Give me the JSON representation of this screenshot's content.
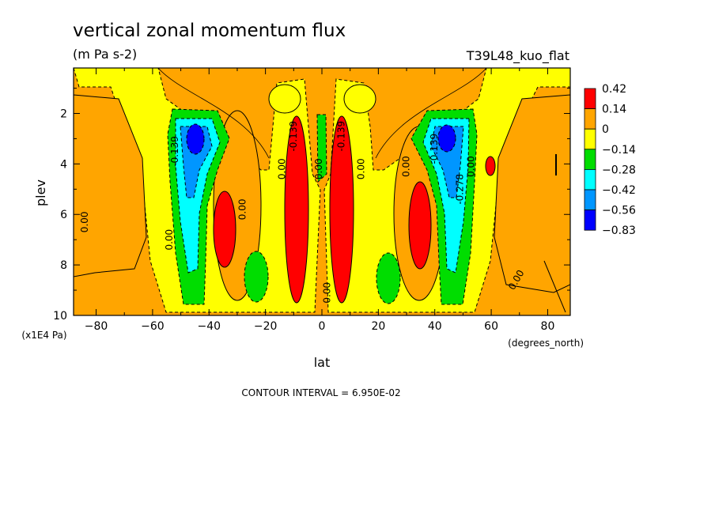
{
  "chart_data": {
    "type": "heatmap",
    "subtype": "filled-contour",
    "title": "vertical zonal momentum flux",
    "units": "(m Pa s-2)",
    "run_label": "T39L48_kuo_flat",
    "xlabel": "lat",
    "x_units": "(degrees_north)",
    "ylabel": "plev",
    "y_units": "(x1E4 Pa)",
    "xlim": [
      -88,
      88
    ],
    "ylim": [
      0.2,
      10
    ],
    "y_inverted": true,
    "x_ticks": [
      "-80",
      "-60",
      "-40",
      "-20",
      "0",
      "20",
      "40",
      "60",
      "80"
    ],
    "y_ticks": [
      "2",
      "4",
      "6",
      "8",
      "10"
    ],
    "contour_interval_text": "CONTOUR INTERVAL = 6.950E-02",
    "colorbar": {
      "labels": [
        "0.42",
        "0.14",
        "0",
        "−0.14",
        "−0.28",
        "−0.42",
        "−0.56",
        "−0.83"
      ],
      "colors": [
        "#ff0000",
        "#ffa500",
        "#ffff00",
        "#00dd00",
        "#00ffff",
        "#0096ff",
        "#0000ff"
      ]
    },
    "contour_labels": [
      {
        "text": "0.00",
        "x": -84,
        "y": 6.3,
        "angle": -90
      },
      {
        "text": "0.00",
        "x": -54,
        "y": 7.0,
        "angle": -90
      },
      {
        "text": "-0.139",
        "x": -52,
        "y": 3.5,
        "angle": -90
      },
      {
        "text": "0.00",
        "x": -28,
        "y": 5.8,
        "angle": -90
      },
      {
        "text": "0.00",
        "x": -14,
        "y": 4.2,
        "angle": -90
      },
      {
        "text": "-0.139",
        "x": -10,
        "y": 2.9,
        "angle": -90
      },
      {
        "text": "0.00",
        "x": -1,
        "y": 4.2,
        "angle": -90
      },
      {
        "text": "0.00",
        "x": 2,
        "y": 9.1,
        "angle": -90
      },
      {
        "text": "-0.139",
        "x": 7,
        "y": 2.9,
        "angle": -90
      },
      {
        "text": "0.00",
        "x": 14,
        "y": 4.2,
        "angle": -90
      },
      {
        "text": "0.00",
        "x": 30,
        "y": 4.1,
        "angle": -90
      },
      {
        "text": "-0.139",
        "x": 40,
        "y": 3.4,
        "angle": -90
      },
      {
        "text": "-0.278",
        "x": 49,
        "y": 5.0,
        "angle": -90
      },
      {
        "text": "0.00",
        "x": 53,
        "y": 4.1,
        "angle": -90
      },
      {
        "text": "0.00",
        "x": 69,
        "y": 8.6,
        "angle": -60
      }
    ]
  }
}
